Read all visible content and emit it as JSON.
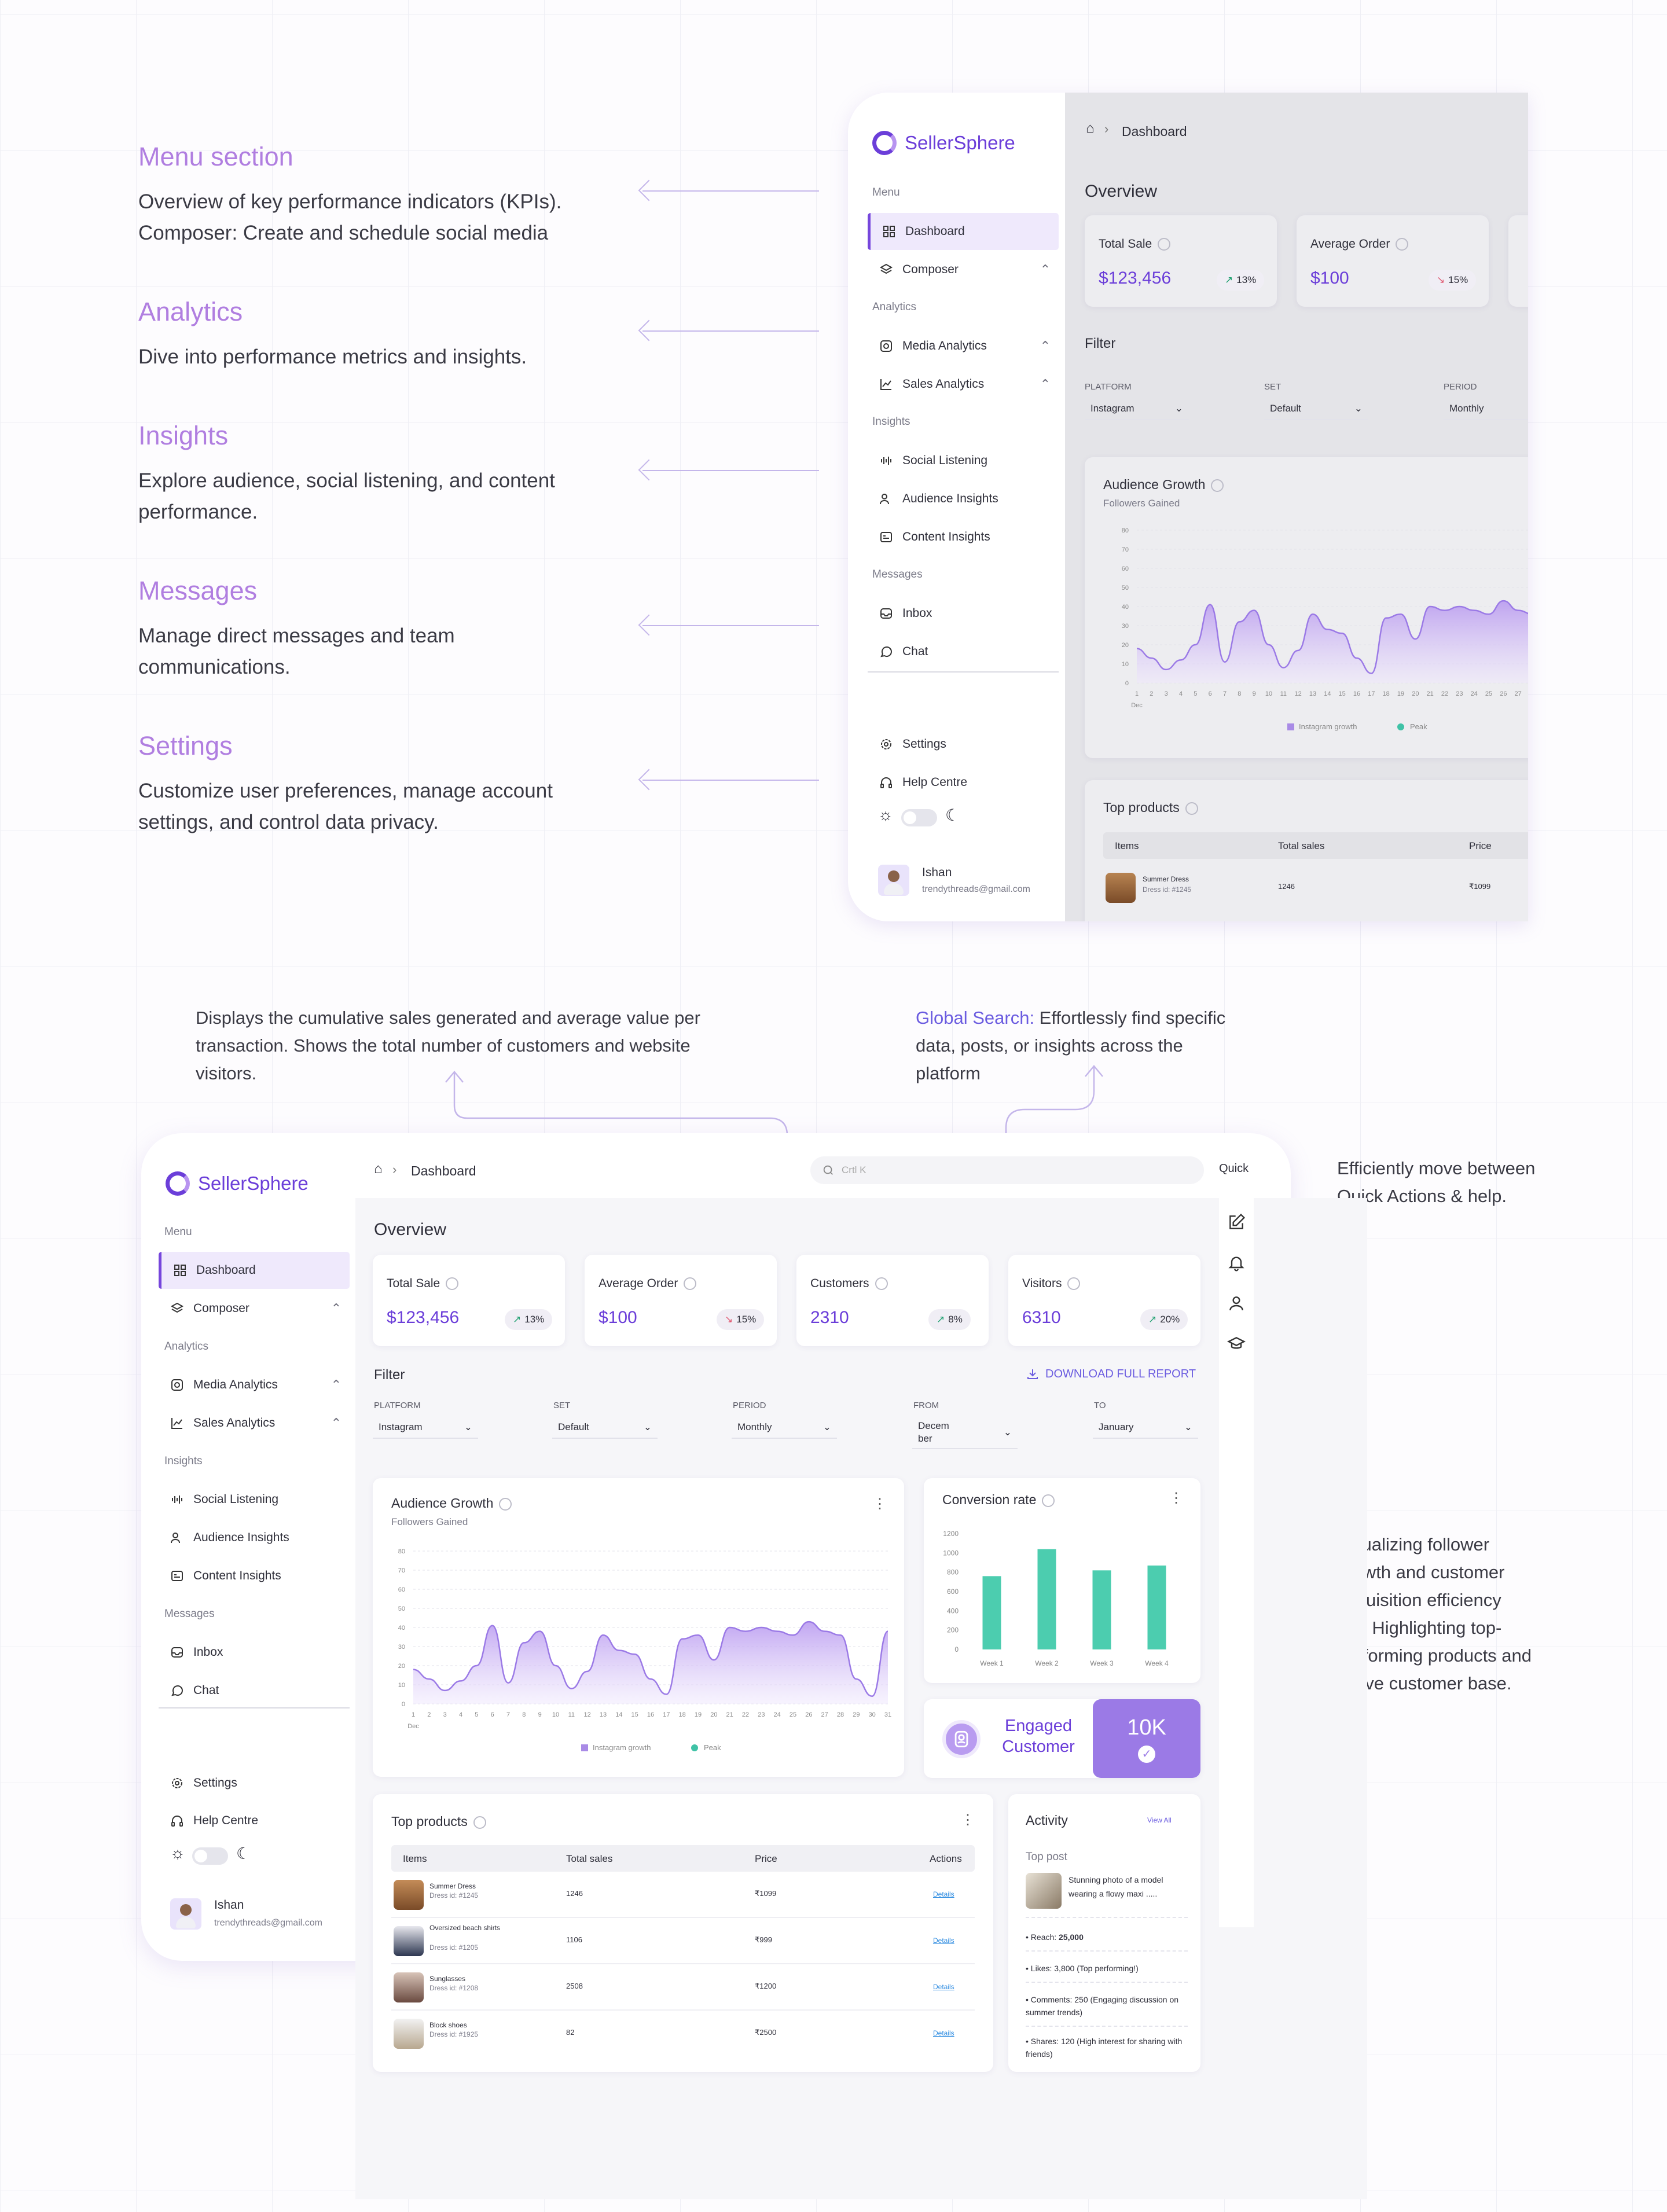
{
  "annotations": [
    {
      "title": "Menu section",
      "text": "Overview of key performance indicators (KPIs). Composer: Create and schedule social media"
    },
    {
      "title": "Analytics",
      "text": "Dive into performance metrics and insights."
    },
    {
      "title": "Insights",
      "text": "Explore audience, social listening, and content performance."
    },
    {
      "title": "Messages",
      "text": "Manage direct messages and team communications."
    },
    {
      "title": "Settings",
      "text": "Customize user preferences, manage account settings, and control data privacy."
    }
  ],
  "notes": {
    "cumulative": "Displays the cumulative sales generated and average value per transaction. Shows the total number of customers and website visitors.",
    "search_prefix": "Global Search:",
    "search_text": " Effortlessly find specific data, posts, or insights across the platform",
    "quick": "Efficiently move between Quick Actions & help.",
    "visual": "Visualizing follower growth and customer acquisition efficiency and Highlighting top-performing products and active customer base."
  },
  "app": {
    "name": "SellerSphere",
    "breadcrumb": "Dashboard",
    "search_placeholder": "Crtl K",
    "quick_label": "Quick",
    "menu_heading": "Menu",
    "nav": {
      "dashboard": "Dashboard",
      "composer": "Composer",
      "analytics_heading": "Analytics",
      "media_analytics": "Media Analytics",
      "sales_analytics": "Sales Analytics",
      "insights_heading": "Insights",
      "social_listening": "Social Listening",
      "audience_insights": "Audience Insights",
      "content_insights": "Content Insights",
      "messages_heading": "Messages",
      "inbox": "Inbox",
      "chat": "Chat",
      "settings": "Settings",
      "help": "Help Centre"
    },
    "user": {
      "name": "Ishan",
      "email": "trendythreads@gmail.com"
    },
    "overview_title": "Overview",
    "kpis": [
      {
        "label": "Total Sale",
        "value": "$123,456",
        "change": "13%",
        "trend": "up"
      },
      {
        "label": "Average Order",
        "value": "$100",
        "change": "15%",
        "trend": "down"
      },
      {
        "label": "Customers",
        "value": "2310",
        "change": "8%",
        "trend": "up"
      },
      {
        "label": "Visitors",
        "value": "6310",
        "change": "20%",
        "trend": "up"
      }
    ],
    "filter": {
      "title": "Filter",
      "download": "DOWNLOAD FULL REPORT",
      "platform_label": "PLATFORM",
      "platform": "Instagram",
      "set_label": "SET",
      "set": "Default",
      "period_label": "PERIOD",
      "period": "Monthly",
      "from_label": "FROM",
      "from": "Decem ber",
      "to_label": "TO",
      "to": "January"
    },
    "engaged": {
      "label": "Engaged Customer",
      "value": "10K"
    },
    "top_products": {
      "title": "Top products",
      "columns": [
        "Items",
        "Total sales",
        "Price",
        "Actions"
      ],
      "rows": [
        {
          "name": "Summer Dress",
          "id": "Dress id: #1245",
          "sales": "1246",
          "price": "₹1099",
          "action": "Details"
        },
        {
          "name": "Oversized beach shirts",
          "id": "Dress id: #1205",
          "sales": "1106",
          "price": "₹999",
          "action": "Details"
        },
        {
          "name": "Sunglasses",
          "id": "Dress id: #1208",
          "sales": "2508",
          "price": "₹1200",
          "action": "Details"
        },
        {
          "name": "Block shoes",
          "id": "Dress id: #1925",
          "sales": "82",
          "price": "₹2500",
          "action": "Details"
        }
      ]
    },
    "activity": {
      "title": "Activity",
      "view_all": "View All",
      "top_post": "Top post",
      "post_caption": "Stunning photo of a model wearing a flowy maxi .....",
      "stats": [
        {
          "label": "Reach:",
          "value": "25,000"
        },
        {
          "label": "Likes:",
          "value": "3,800 (Top performing!)"
        },
        {
          "label": "Comments:",
          "value": "250 (Engaging discussion on summer trends)"
        },
        {
          "label": "Shares:",
          "value": "120 (High interest for sharing with friends)"
        }
      ]
    }
  },
  "chart_data": [
    {
      "type": "area",
      "title": "Audience Growth",
      "subtitle": "Followers Gained",
      "x": [
        1,
        2,
        3,
        4,
        5,
        6,
        7,
        8,
        9,
        10,
        11,
        12,
        13,
        14,
        15,
        16,
        17,
        18,
        19,
        20,
        21,
        22,
        23,
        24,
        25,
        26,
        27,
        28,
        29,
        30,
        31
      ],
      "x_first_sublabel": "Dec",
      "ylim": [
        0,
        80
      ],
      "yticks": [
        0,
        10,
        20,
        30,
        40,
        50,
        60,
        70,
        80
      ],
      "series": [
        {
          "name": "Instagram growth",
          "values": [
            18,
            13,
            7,
            12,
            20,
            41,
            11,
            32,
            38,
            20,
            8,
            17,
            36,
            28,
            26,
            13,
            5,
            34,
            36,
            23,
            40,
            38,
            40,
            38,
            36,
            43,
            38,
            36,
            13,
            4,
            38
          ]
        },
        {
          "name": "Peak",
          "values": [
            null,
            null,
            null,
            null,
            null,
            null,
            null,
            null,
            null,
            null,
            null,
            null,
            null,
            null,
            null,
            null,
            null,
            null,
            null,
            null,
            null,
            null,
            null,
            null,
            null,
            null,
            null,
            null,
            null,
            null,
            null
          ]
        }
      ],
      "legend": "bottom",
      "colors": {
        "Instagram growth": "#a98be6",
        "Peak": "#3fc2a6"
      }
    },
    {
      "type": "bar",
      "title": "Conversion rate",
      "categories": [
        "Week 1",
        "Week 2",
        "Week 3",
        "Week 4"
      ],
      "values": [
        760,
        1040,
        820,
        870
      ],
      "ylim": [
        0,
        1200
      ],
      "yticks": [
        0,
        200,
        400,
        600,
        800,
        1000,
        1200
      ],
      "color": "#4ccdaf"
    }
  ]
}
